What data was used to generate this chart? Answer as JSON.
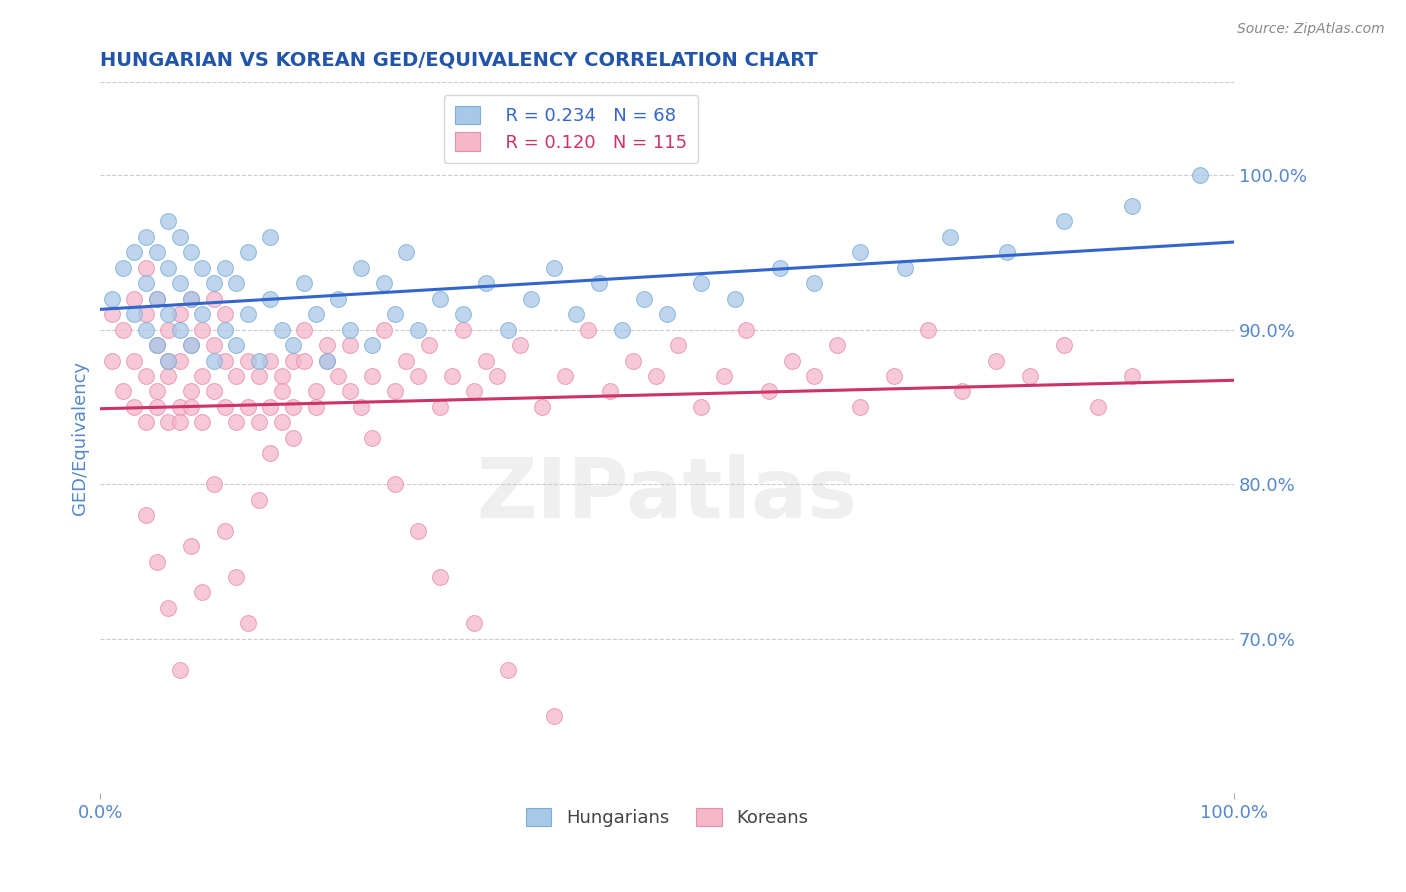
{
  "title": "HUNGARIAN VS KOREAN GED/EQUIVALENCY CORRELATION CHART",
  "source": "Source: ZipAtlas.com",
  "ylabel": "GED/Equivalency",
  "right_yticks": [
    0.7,
    0.8,
    0.9,
    1.0
  ],
  "right_yticklabels": [
    "70.0%",
    "80.0%",
    "90.0%",
    "100.0%"
  ],
  "xlim": [
    0.0,
    1.0
  ],
  "ylim": [
    0.6,
    1.06
  ],
  "legend_R_hungarian": "R = 0.234",
  "legend_N_hungarian": "N = 68",
  "legend_R_korean": "R = 0.120",
  "legend_N_korean": "N = 115",
  "blue_color": "#a8c8e8",
  "blue_edge_color": "#7aafd4",
  "blue_line_color": "#3366cc",
  "pink_color": "#f5b8cb",
  "pink_edge_color": "#e890aa",
  "pink_line_color": "#cc3366",
  "title_color": "#2255aa",
  "axis_label_color": "#5588cc",
  "grid_color": "#cccccc",
  "background_color": "#ffffff",
  "hungarian_x": [
    0.01,
    0.02,
    0.03,
    0.03,
    0.04,
    0.04,
    0.04,
    0.05,
    0.05,
    0.05,
    0.06,
    0.06,
    0.06,
    0.06,
    0.07,
    0.07,
    0.07,
    0.08,
    0.08,
    0.08,
    0.09,
    0.09,
    0.1,
    0.1,
    0.11,
    0.11,
    0.12,
    0.12,
    0.13,
    0.13,
    0.14,
    0.15,
    0.15,
    0.16,
    0.17,
    0.18,
    0.19,
    0.2,
    0.21,
    0.22,
    0.23,
    0.24,
    0.25,
    0.26,
    0.27,
    0.28,
    0.3,
    0.32,
    0.34,
    0.36,
    0.38,
    0.4,
    0.42,
    0.44,
    0.46,
    0.48,
    0.5,
    0.53,
    0.56,
    0.6,
    0.63,
    0.67,
    0.71,
    0.75,
    0.8,
    0.85,
    0.91,
    0.97
  ],
  "hungarian_y": [
    0.92,
    0.94,
    0.91,
    0.95,
    0.9,
    0.93,
    0.96,
    0.89,
    0.92,
    0.95,
    0.88,
    0.91,
    0.94,
    0.97,
    0.9,
    0.93,
    0.96,
    0.89,
    0.92,
    0.95,
    0.91,
    0.94,
    0.88,
    0.93,
    0.9,
    0.94,
    0.89,
    0.93,
    0.91,
    0.95,
    0.88,
    0.92,
    0.96,
    0.9,
    0.89,
    0.93,
    0.91,
    0.88,
    0.92,
    0.9,
    0.94,
    0.89,
    0.93,
    0.91,
    0.95,
    0.9,
    0.92,
    0.91,
    0.93,
    0.9,
    0.92,
    0.94,
    0.91,
    0.93,
    0.9,
    0.92,
    0.91,
    0.93,
    0.92,
    0.94,
    0.93,
    0.95,
    0.94,
    0.96,
    0.95,
    0.97,
    0.98,
    1.0
  ],
  "korean_x": [
    0.01,
    0.01,
    0.02,
    0.02,
    0.03,
    0.03,
    0.03,
    0.04,
    0.04,
    0.04,
    0.04,
    0.05,
    0.05,
    0.05,
    0.05,
    0.06,
    0.06,
    0.06,
    0.06,
    0.07,
    0.07,
    0.07,
    0.07,
    0.08,
    0.08,
    0.08,
    0.08,
    0.09,
    0.09,
    0.09,
    0.1,
    0.1,
    0.1,
    0.11,
    0.11,
    0.11,
    0.12,
    0.12,
    0.13,
    0.13,
    0.14,
    0.14,
    0.15,
    0.15,
    0.16,
    0.16,
    0.17,
    0.17,
    0.18,
    0.19,
    0.2,
    0.21,
    0.22,
    0.23,
    0.24,
    0.25,
    0.26,
    0.27,
    0.28,
    0.29,
    0.3,
    0.31,
    0.32,
    0.33,
    0.34,
    0.35,
    0.37,
    0.39,
    0.41,
    0.43,
    0.45,
    0.47,
    0.49,
    0.51,
    0.53,
    0.55,
    0.57,
    0.59,
    0.61,
    0.63,
    0.65,
    0.67,
    0.7,
    0.73,
    0.76,
    0.79,
    0.82,
    0.85,
    0.88,
    0.91,
    0.04,
    0.05,
    0.06,
    0.07,
    0.08,
    0.09,
    0.1,
    0.11,
    0.12,
    0.13,
    0.14,
    0.15,
    0.16,
    0.17,
    0.18,
    0.19,
    0.2,
    0.22,
    0.24,
    0.26,
    0.28,
    0.3,
    0.33,
    0.36,
    0.4
  ],
  "korean_y": [
    0.88,
    0.91,
    0.86,
    0.9,
    0.85,
    0.88,
    0.92,
    0.84,
    0.87,
    0.91,
    0.94,
    0.86,
    0.89,
    0.92,
    0.85,
    0.87,
    0.9,
    0.84,
    0.88,
    0.85,
    0.88,
    0.91,
    0.84,
    0.86,
    0.89,
    0.92,
    0.85,
    0.87,
    0.9,
    0.84,
    0.86,
    0.89,
    0.92,
    0.85,
    0.88,
    0.91,
    0.84,
    0.87,
    0.85,
    0.88,
    0.84,
    0.87,
    0.85,
    0.88,
    0.84,
    0.87,
    0.85,
    0.88,
    0.9,
    0.86,
    0.88,
    0.87,
    0.89,
    0.85,
    0.87,
    0.9,
    0.86,
    0.88,
    0.87,
    0.89,
    0.85,
    0.87,
    0.9,
    0.86,
    0.88,
    0.87,
    0.89,
    0.85,
    0.87,
    0.9,
    0.86,
    0.88,
    0.87,
    0.89,
    0.85,
    0.87,
    0.9,
    0.86,
    0.88,
    0.87,
    0.89,
    0.85,
    0.87,
    0.9,
    0.86,
    0.88,
    0.87,
    0.89,
    0.85,
    0.87,
    0.78,
    0.75,
    0.72,
    0.68,
    0.76,
    0.73,
    0.8,
    0.77,
    0.74,
    0.71,
    0.79,
    0.82,
    0.86,
    0.83,
    0.88,
    0.85,
    0.89,
    0.86,
    0.83,
    0.8,
    0.77,
    0.74,
    0.71,
    0.68,
    0.65
  ]
}
